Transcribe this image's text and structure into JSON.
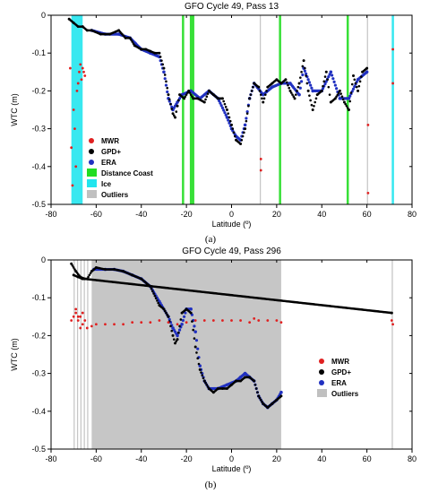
{
  "chart_data": [
    {
      "type": "scatter",
      "title": "GFO Cycle 49, Pass 13",
      "xlabel": "Latitude (º)",
      "ylabel": "WTC (m)",
      "xlim": [
        -80,
        80
      ],
      "ylim": [
        -0.5,
        0
      ],
      "xticks": [
        -80,
        -60,
        -40,
        -20,
        0,
        20,
        40,
        60,
        80
      ],
      "yticks": [
        -0.5,
        -0.4,
        -0.3,
        -0.2,
        -0.1,
        0
      ],
      "grid": false,
      "legend_position": "center-left",
      "caption": "(a)",
      "colors": {
        "MWR": "#e02020",
        "GPD+": "#000000",
        "ERA": "#2030c0",
        "Distance Coast": "#22dd22",
        "Ice": "#22e5ee",
        "Outliers": "#c0c0c0"
      },
      "legend": [
        "MWR",
        "GPD+",
        "ERA",
        "Distance Coast",
        "Ice",
        "Outliers"
      ],
      "bands": [
        {
          "type": "Ice",
          "x": [
            -71,
            -66
          ]
        },
        {
          "type": "Ice",
          "x": [
            71,
            72
          ]
        },
        {
          "type": "Distance Coast",
          "x": [
            -22,
            -21
          ]
        },
        {
          "type": "Distance Coast",
          "x": [
            -18.5,
            -16.5
          ]
        },
        {
          "type": "Distance Coast",
          "x": [
            21,
            22
          ]
        },
        {
          "type": "Distance Coast",
          "x": [
            51,
            52
          ]
        },
        {
          "type": "Outliers",
          "x": [
            12.5,
            13
          ]
        },
        {
          "type": "Outliers",
          "x": [
            60,
            60.5
          ]
        }
      ],
      "series": [
        {
          "name": "GPD+",
          "x": [
            -72,
            -70,
            -68,
            -66,
            -64,
            -62,
            -58,
            -54,
            -50,
            -47,
            -45,
            -43,
            -40,
            -38,
            -36,
            -34,
            -32,
            -30,
            -28,
            -26,
            -25,
            -24,
            -23,
            -21,
            -19,
            -17,
            -15,
            -12,
            -10,
            -8,
            -6,
            -4,
            -2,
            0,
            2,
            4,
            6,
            8,
            10,
            12,
            14,
            16,
            18,
            20,
            22,
            24,
            26,
            28,
            30,
            32,
            34,
            36,
            38,
            40,
            42,
            44,
            46,
            48,
            50,
            52,
            54,
            56,
            58,
            60
          ],
          "y": [
            -0.01,
            -0.02,
            -0.03,
            -0.03,
            -0.04,
            -0.04,
            -0.05,
            -0.05,
            -0.04,
            -0.06,
            -0.06,
            -0.08,
            -0.09,
            -0.09,
            -0.095,
            -0.1,
            -0.1,
            -0.14,
            -0.21,
            -0.26,
            -0.27,
            -0.24,
            -0.21,
            -0.22,
            -0.2,
            -0.22,
            -0.22,
            -0.23,
            -0.2,
            -0.21,
            -0.22,
            -0.22,
            -0.25,
            -0.29,
            -0.33,
            -0.34,
            -0.3,
            -0.22,
            -0.18,
            -0.19,
            -0.23,
            -0.19,
            -0.18,
            -0.17,
            -0.18,
            -0.17,
            -0.2,
            -0.22,
            -0.18,
            -0.12,
            -0.2,
            -0.25,
            -0.21,
            -0.2,
            -0.15,
            -0.23,
            -0.22,
            -0.2,
            -0.23,
            -0.25,
            -0.16,
            -0.2,
            -0.15,
            -0.14
          ]
        },
        {
          "name": "ERA",
          "x": [
            -62,
            -56,
            -50,
            -45,
            -40,
            -36,
            -32,
            -30,
            -28,
            -26,
            -24,
            -22,
            -18,
            -14,
            -10,
            -6,
            -2,
            0,
            2,
            4,
            6,
            8,
            10,
            14,
            18,
            22,
            26,
            30,
            32,
            36,
            40,
            44,
            48,
            52,
            56,
            60
          ],
          "y": [
            -0.04,
            -0.05,
            -0.05,
            -0.06,
            -0.09,
            -0.1,
            -0.11,
            -0.15,
            -0.22,
            -0.25,
            -0.23,
            -0.21,
            -0.2,
            -0.22,
            -0.2,
            -0.22,
            -0.27,
            -0.3,
            -0.32,
            -0.33,
            -0.29,
            -0.22,
            -0.18,
            -0.21,
            -0.19,
            -0.18,
            -0.18,
            -0.21,
            -0.14,
            -0.2,
            -0.2,
            -0.15,
            -0.22,
            -0.22,
            -0.17,
            -0.15
          ]
        },
        {
          "name": "MWR",
          "x": [
            -71.5,
            -70.5,
            -69.5,
            -68.5,
            -67.5,
            -66.5,
            -65.5,
            -71,
            -70,
            -69,
            -68,
            13,
            13,
            60.5,
            60.5,
            71.5,
            71.5,
            -65,
            -66,
            -67
          ],
          "y": [
            -0.14,
            -0.45,
            -0.3,
            -0.2,
            -0.15,
            -0.17,
            -0.15,
            -0.35,
            -0.25,
            -0.4,
            -0.18,
            -0.38,
            -0.41,
            -0.29,
            -0.47,
            -0.09,
            -0.18,
            -0.16,
            -0.14,
            -0.13
          ]
        }
      ]
    },
    {
      "type": "scatter",
      "title": "GFO Cycle 49, Pass 296",
      "xlabel": "Latitude (º)",
      "ylabel": "WTC (m)",
      "xlim": [
        -80,
        80
      ],
      "ylim": [
        -0.5,
        0
      ],
      "xticks": [
        -80,
        -60,
        -40,
        -20,
        0,
        20,
        40,
        60,
        80
      ],
      "yticks": [
        -0.5,
        -0.4,
        -0.3,
        -0.2,
        -0.1,
        0
      ],
      "grid": false,
      "legend_position": "right",
      "caption": "(b)",
      "colors": {
        "MWR": "#e02020",
        "GPD+": "#000000",
        "ERA": "#2030c0",
        "Outliers": "#c0c0c0"
      },
      "legend": [
        "MWR",
        "GPD+",
        "ERA",
        "Outliers"
      ],
      "bands": [
        {
          "type": "Outliers",
          "x": [
            -62,
            22
          ]
        },
        {
          "type": "Outliers",
          "x": [
            -70,
            -69.5
          ]
        },
        {
          "type": "Outliers",
          "x": [
            -68.5,
            -68
          ]
        },
        {
          "type": "Outliers",
          "x": [
            -67,
            -66.5
          ]
        },
        {
          "type": "Outliers",
          "x": [
            -65.5,
            -65
          ]
        },
        {
          "type": "Outliers",
          "x": [
            -64,
            -63.5
          ]
        },
        {
          "type": "Outliers",
          "x": [
            71,
            71.5
          ]
        }
      ],
      "series": [
        {
          "name": "GPD+",
          "x": [
            -70,
            -68,
            -66,
            -64,
            -62,
            -60,
            -56,
            -52,
            -48,
            -44,
            -40,
            -36,
            -32,
            -30,
            -28,
            -26,
            -25,
            -24,
            -22,
            -20,
            -18,
            -16,
            -14,
            -12,
            -10,
            -8,
            -6,
            -4,
            -2,
            0,
            2,
            4,
            6,
            8,
            10,
            12,
            14,
            16,
            18,
            20,
            22,
            -71,
            -69,
            -67,
            -65,
            71
          ],
          "y": [
            -0.04,
            -0.045,
            -0.05,
            -0.05,
            -0.03,
            -0.02,
            -0.025,
            -0.025,
            -0.03,
            -0.04,
            -0.05,
            -0.07,
            -0.12,
            -0.13,
            -0.15,
            -0.2,
            -0.22,
            -0.21,
            -0.14,
            -0.13,
            -0.14,
            -0.23,
            -0.29,
            -0.32,
            -0.34,
            -0.35,
            -0.34,
            -0.34,
            -0.34,
            -0.33,
            -0.32,
            -0.32,
            -0.31,
            -0.31,
            -0.32,
            -0.36,
            -0.38,
            -0.39,
            -0.38,
            -0.37,
            -0.36,
            -0.01,
            -0.03,
            -0.045,
            -0.05,
            -0.14
          ]
        },
        {
          "name": "ERA",
          "x": [
            -61,
            -56,
            -52,
            -48,
            -44,
            -40,
            -36,
            -32,
            -28,
            -26,
            -24,
            -22,
            -20,
            -18,
            -16,
            -14,
            -12,
            -10,
            -6,
            -2,
            2,
            4,
            6,
            8,
            10,
            12,
            14,
            16,
            18,
            20,
            22
          ],
          "y": [
            -0.025,
            -0.025,
            -0.025,
            -0.03,
            -0.04,
            -0.05,
            -0.07,
            -0.11,
            -0.15,
            -0.18,
            -0.2,
            -0.17,
            -0.13,
            -0.13,
            -0.19,
            -0.28,
            -0.32,
            -0.34,
            -0.34,
            -0.33,
            -0.32,
            -0.31,
            -0.3,
            -0.31,
            -0.32,
            -0.36,
            -0.38,
            -0.39,
            -0.38,
            -0.37,
            -0.35
          ]
        },
        {
          "name": "MWR",
          "x": [
            -71,
            -70,
            -69,
            -68,
            -67,
            -66,
            -65,
            -64,
            -62,
            -60,
            -56,
            -52,
            -48,
            -44,
            -40,
            -36,
            -32,
            -28,
            -24,
            -20,
            -16,
            -12,
            -8,
            -4,
            0,
            4,
            8,
            10,
            12,
            16,
            20,
            22,
            71,
            71.5,
            -69,
            -68,
            -67,
            -66
          ],
          "y": [
            -0.16,
            -0.15,
            -0.14,
            -0.16,
            -0.15,
            -0.17,
            -0.16,
            -0.18,
            -0.175,
            -0.17,
            -0.17,
            -0.17,
            -0.17,
            -0.165,
            -0.165,
            -0.165,
            -0.16,
            -0.165,
            -0.17,
            -0.165,
            -0.16,
            -0.16,
            -0.16,
            -0.16,
            -0.16,
            -0.16,
            -0.165,
            -0.155,
            -0.16,
            -0.16,
            -0.16,
            -0.165,
            -0.16,
            -0.17,
            -0.13,
            -0.15,
            -0.18,
            -0.14
          ]
        }
      ]
    }
  ]
}
